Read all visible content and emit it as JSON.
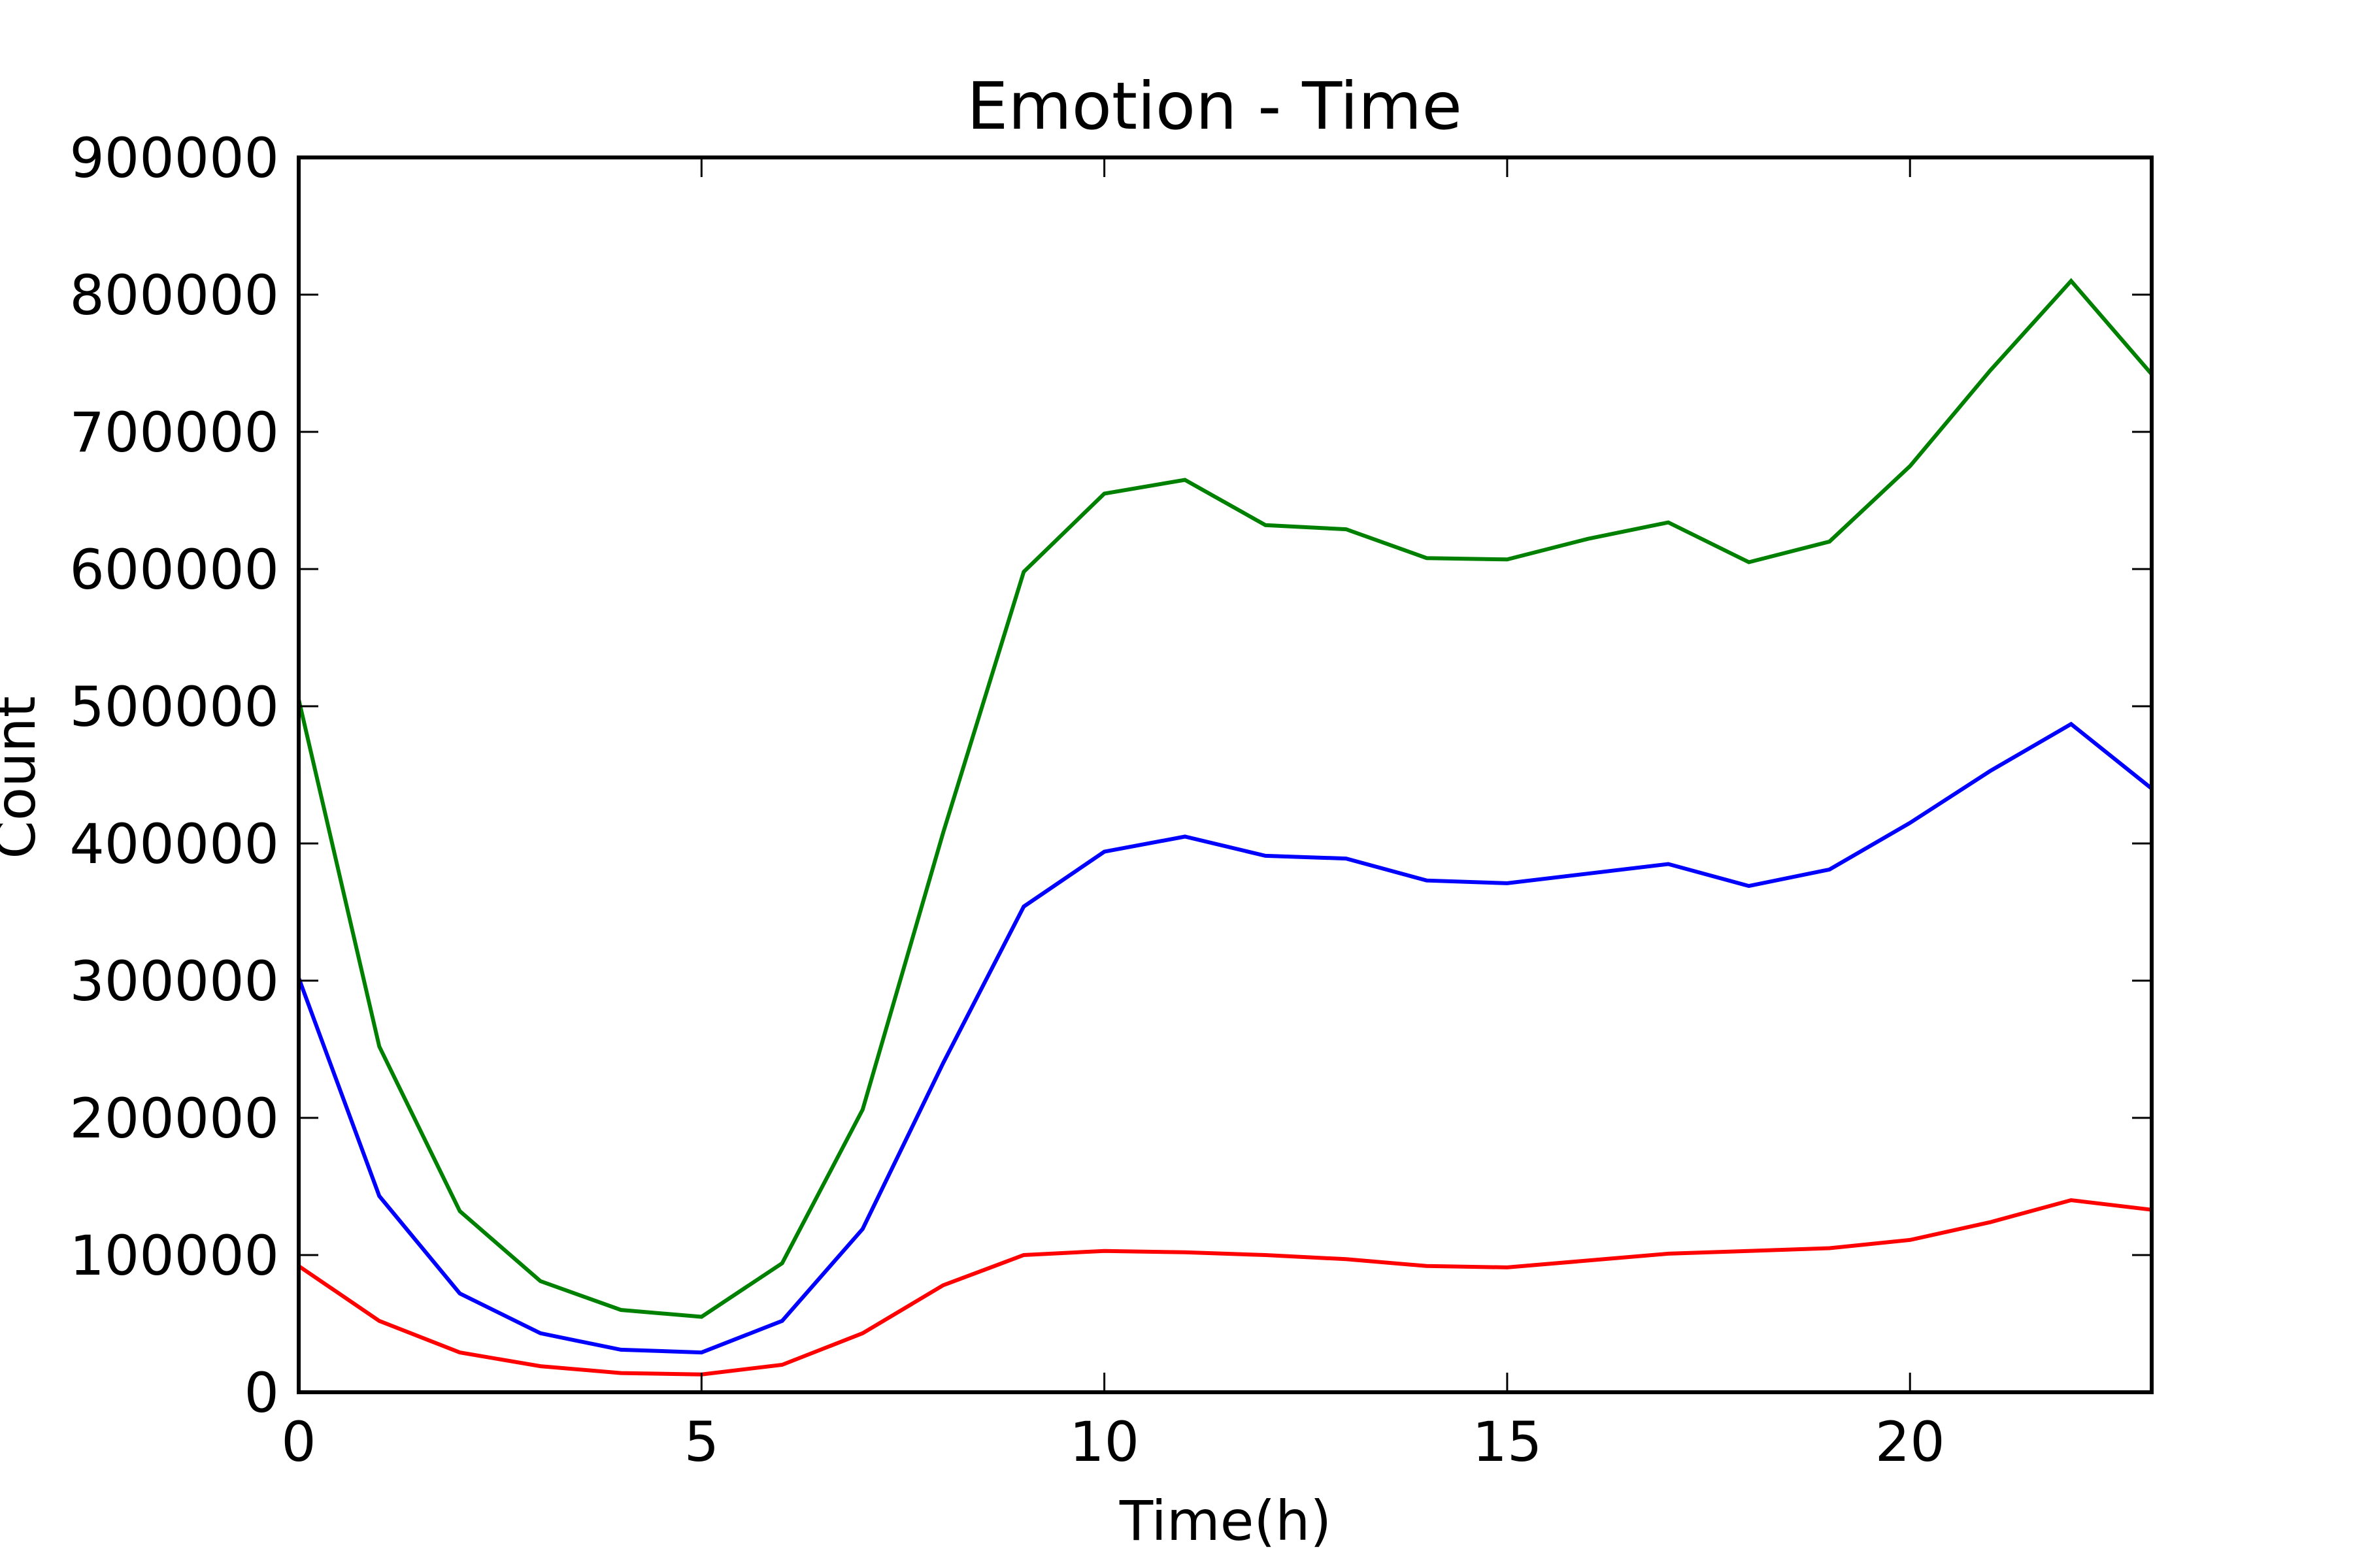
{
  "chart_data": {
    "type": "line",
    "title": "Emotion - Time",
    "xlabel": "Time(h)",
    "ylabel": "Count",
    "xlim": [
      0,
      23
    ],
    "ylim": [
      0,
      900000
    ],
    "x_ticks": [
      0,
      5,
      10,
      15,
      20
    ],
    "y_ticks": [
      0,
      100000,
      200000,
      300000,
      400000,
      500000,
      600000,
      700000,
      800000,
      900000
    ],
    "grid": false,
    "x": [
      0,
      1,
      2,
      3,
      4,
      5,
      6,
      7,
      8,
      9,
      10,
      11,
      12,
      13,
      14,
      15,
      16,
      17,
      18,
      19,
      20,
      21,
      22,
      23
    ],
    "series": [
      {
        "color": "#008000",
        "values": [
          505000,
          252000,
          132000,
          81000,
          60000,
          55000,
          94000,
          206000,
          408000,
          598000,
          655000,
          665000,
          632000,
          629000,
          608000,
          607000,
          622000,
          634000,
          605000,
          620000,
          675000,
          745000,
          810000,
          742000
        ]
      },
      {
        "color": "#0000ff",
        "values": [
          302000,
          143000,
          72000,
          43000,
          31000,
          29000,
          52000,
          119000,
          240000,
          354000,
          394000,
          405000,
          391000,
          389000,
          373000,
          371000,
          378000,
          385000,
          369000,
          381000,
          415000,
          453000,
          487000,
          440000
        ]
      },
      {
        "color": "#ff0000",
        "values": [
          92000,
          52000,
          29000,
          19000,
          14000,
          13000,
          20000,
          43000,
          78000,
          100000,
          103000,
          102000,
          100000,
          97000,
          92000,
          91000,
          96000,
          101000,
          103000,
          105000,
          111000,
          124000,
          140000,
          133000
        ]
      }
    ]
  }
}
